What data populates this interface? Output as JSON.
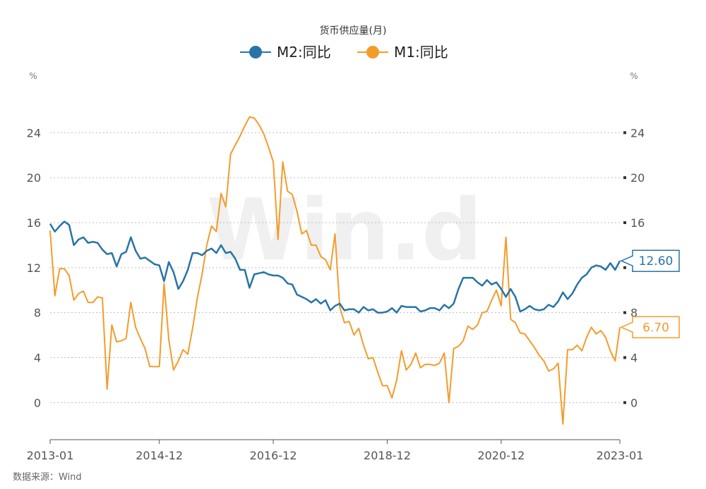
{
  "title": "货币供应量(月)",
  "source": "数据来源：Wind",
  "watermark": "Win.d",
  "units": {
    "left": "%",
    "right": "%"
  },
  "callouts": {
    "m2": "12.60",
    "m1": "6.70"
  },
  "colors": {
    "m2": "#2874a6",
    "m1": "#f39c2b",
    "grid": "#bdbdbd"
  },
  "chart_data": {
    "type": "line",
    "x_tick_labels": [
      "2013-01",
      "2014-12",
      "2016-12",
      "2018-12",
      "2020-12",
      "2023-01"
    ],
    "y_tick_labels": [
      "0",
      "4",
      "8",
      "12",
      "16",
      "20",
      "24"
    ],
    "ylim": [
      -3.3,
      26.4
    ],
    "grid": true,
    "legend_placement": "top-center",
    "x": [
      "2013-01",
      "2013-02",
      "2013-03",
      "2013-04",
      "2013-05",
      "2013-06",
      "2013-07",
      "2013-08",
      "2013-09",
      "2013-10",
      "2013-11",
      "2013-12",
      "2014-01",
      "2014-02",
      "2014-03",
      "2014-04",
      "2014-05",
      "2014-06",
      "2014-07",
      "2014-08",
      "2014-09",
      "2014-10",
      "2014-11",
      "2014-12",
      "2015-01",
      "2015-02",
      "2015-03",
      "2015-04",
      "2015-05",
      "2015-06",
      "2015-07",
      "2015-08",
      "2015-09",
      "2015-10",
      "2015-11",
      "2015-12",
      "2016-01",
      "2016-02",
      "2016-03",
      "2016-04",
      "2016-05",
      "2016-06",
      "2016-07",
      "2016-08",
      "2016-09",
      "2016-10",
      "2016-11",
      "2016-12",
      "2017-01",
      "2017-02",
      "2017-03",
      "2017-04",
      "2017-05",
      "2017-06",
      "2017-07",
      "2017-08",
      "2017-09",
      "2017-10",
      "2017-11",
      "2017-12",
      "2018-01",
      "2018-02",
      "2018-03",
      "2018-04",
      "2018-05",
      "2018-06",
      "2018-07",
      "2018-08",
      "2018-09",
      "2018-10",
      "2018-11",
      "2018-12",
      "2019-01",
      "2019-02",
      "2019-03",
      "2019-04",
      "2019-05",
      "2019-06",
      "2019-07",
      "2019-08",
      "2019-09",
      "2019-10",
      "2019-11",
      "2019-12",
      "2020-01",
      "2020-02",
      "2020-03",
      "2020-04",
      "2020-05",
      "2020-06",
      "2020-07",
      "2020-08",
      "2020-09",
      "2020-10",
      "2020-11",
      "2020-12",
      "2021-01",
      "2021-02",
      "2021-03",
      "2021-04",
      "2021-05",
      "2021-06",
      "2021-07",
      "2021-08",
      "2021-09",
      "2021-10",
      "2021-11",
      "2021-12",
      "2022-01",
      "2022-02",
      "2022-03",
      "2022-04",
      "2022-05",
      "2022-06",
      "2022-07",
      "2022-08",
      "2022-09",
      "2022-10",
      "2022-11",
      "2022-12",
      "2023-01"
    ],
    "series": [
      {
        "name": "M2:同比",
        "values": [
          15.9,
          15.2,
          15.7,
          16.1,
          15.8,
          14.0,
          14.5,
          14.7,
          14.2,
          14.3,
          14.2,
          13.6,
          13.2,
          13.3,
          12.1,
          13.2,
          13.4,
          14.7,
          13.5,
          12.8,
          12.9,
          12.6,
          12.3,
          12.2,
          10.8,
          12.5,
          11.6,
          10.1,
          10.8,
          11.8,
          13.3,
          13.3,
          13.1,
          13.5,
          13.7,
          13.3,
          14.0,
          13.3,
          13.4,
          12.8,
          11.8,
          11.8,
          10.2,
          11.4,
          11.5,
          11.6,
          11.4,
          11.3,
          11.3,
          11.1,
          10.6,
          10.5,
          9.6,
          9.4,
          9.2,
          8.9,
          9.2,
          8.8,
          9.1,
          8.2,
          8.6,
          8.8,
          8.2,
          8.3,
          8.3,
          8.0,
          8.5,
          8.2,
          8.3,
          8.0,
          8.0,
          8.1,
          8.4,
          8.0,
          8.6,
          8.5,
          8.5,
          8.5,
          8.1,
          8.2,
          8.4,
          8.4,
          8.2,
          8.7,
          8.4,
          8.8,
          10.1,
          11.1,
          11.1,
          11.1,
          10.7,
          10.4,
          10.9,
          10.5,
          10.7,
          10.1,
          9.4,
          10.1,
          9.4,
          8.1,
          8.3,
          8.6,
          8.3,
          8.2,
          8.3,
          8.7,
          8.5,
          9.0,
          9.8,
          9.2,
          9.7,
          10.5,
          11.1,
          11.4,
          12.0,
          12.2,
          12.1,
          11.8,
          12.4,
          11.8,
          12.6
        ]
      },
      {
        "name": "M1:同比",
        "values": [
          15.3,
          9.5,
          11.9,
          11.9,
          11.3,
          9.1,
          9.7,
          9.9,
          8.9,
          8.9,
          9.4,
          9.3,
          1.2,
          6.9,
          5.4,
          5.5,
          5.7,
          8.9,
          6.7,
          5.7,
          4.8,
          3.2,
          3.2,
          3.2,
          10.6,
          5.6,
          2.9,
          3.7,
          4.7,
          4.3,
          6.6,
          9.3,
          11.4,
          14.0,
          15.7,
          15.2,
          18.6,
          17.4,
          22.1,
          22.9,
          23.7,
          24.6,
          25.4,
          25.3,
          24.7,
          23.9,
          22.7,
          21.4,
          14.5,
          21.4,
          18.8,
          18.5,
          17.0,
          15.0,
          15.3,
          14.0,
          14.0,
          13.0,
          12.7,
          11.8,
          15.0,
          8.5,
          7.1,
          7.2,
          6.0,
          6.6,
          5.1,
          3.9,
          4.0,
          2.7,
          1.5,
          1.5,
          0.4,
          2.0,
          4.6,
          2.9,
          3.4,
          4.4,
          3.1,
          3.4,
          3.4,
          3.3,
          3.5,
          4.4,
          0.0,
          4.8,
          5.0,
          5.5,
          6.8,
          6.5,
          6.9,
          8.0,
          8.1,
          9.1,
          10.0,
          8.6,
          14.7,
          7.4,
          7.1,
          6.2,
          6.1,
          5.5,
          4.9,
          4.2,
          3.7,
          2.8,
          3.0,
          3.5,
          -1.9,
          4.7,
          4.7,
          5.1,
          4.6,
          5.8,
          6.7,
          6.1,
          6.4,
          5.8,
          4.6,
          3.7,
          6.7
        ]
      }
    ]
  }
}
